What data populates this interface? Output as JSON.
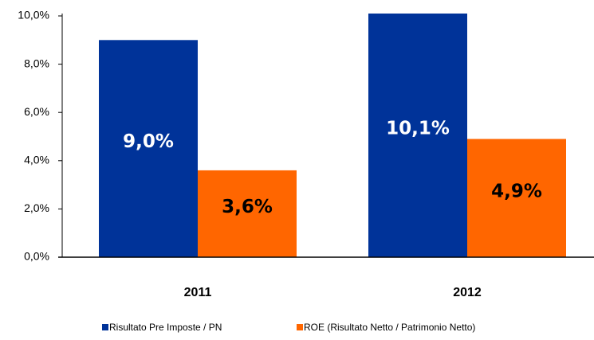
{
  "chart_data": {
    "type": "bar",
    "categories": [
      "2011",
      "2012"
    ],
    "series": [
      {
        "name": "Risultato Pre Imposte / PN",
        "color": "#003399",
        "label_color": "#ffffff",
        "values": [
          9.0,
          10.1
        ],
        "value_labels": [
          "9,0%",
          "10,1%"
        ]
      },
      {
        "name": "ROE (Risultato Netto / Patrimonio Netto)",
        "color": "#ff6600",
        "label_color": "#000000",
        "values": [
          3.6,
          4.9
        ],
        "value_labels": [
          "3,6%",
          "4,9%"
        ]
      }
    ],
    "ylim": [
      0,
      10
    ],
    "yticks": [
      {
        "value": 0,
        "label": "0,0%"
      },
      {
        "value": 2,
        "label": "2,0%"
      },
      {
        "value": 4,
        "label": "4,0%"
      },
      {
        "value": 6,
        "label": "6,0%"
      },
      {
        "value": 8,
        "label": "8,0%"
      },
      {
        "value": 10,
        "label": "10,0%"
      }
    ],
    "legend": "bottom"
  }
}
